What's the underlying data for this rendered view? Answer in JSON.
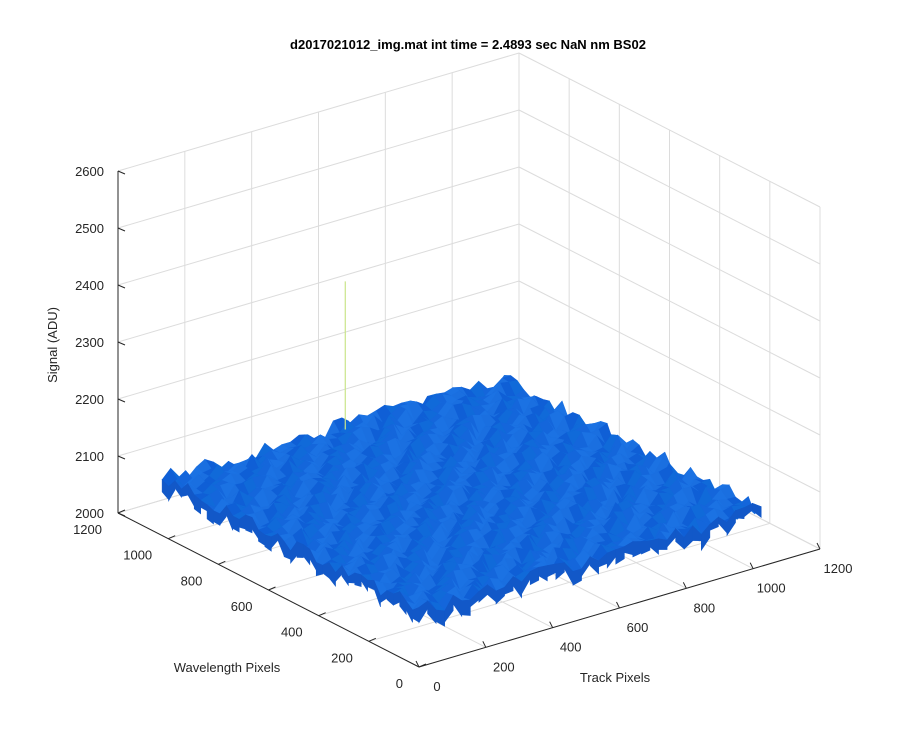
{
  "chart_data": {
    "type": "surface",
    "title": "d2017021012_img.mat int time = 2.4893 sec  NaN nm BS02",
    "xlabel": "Track Pixels",
    "ylabel": "Wavelength Pixels",
    "zlabel": "Signal (ADU)",
    "xlim": [
      0,
      1200
    ],
    "ylim": [
      0,
      1200
    ],
    "zlim": [
      2000,
      2600
    ],
    "xticks": [
      "0",
      "200",
      "400",
      "600",
      "800",
      "1000",
      "1200"
    ],
    "yticks": [
      "0",
      "200",
      "400",
      "600",
      "800",
      "1000",
      "1200"
    ],
    "zticks": [
      "2000",
      "2100",
      "2200",
      "2300",
      "2400",
      "2500",
      "2600"
    ],
    "surface": {
      "x_range": [
        0,
        1024
      ],
      "y_range": [
        0,
        1024
      ],
      "z_mean": 2100,
      "z_noise": 15,
      "spike": {
        "x": 530,
        "y": 1000,
        "z": 2360
      },
      "colormap": "parula",
      "dominant_color": "#1166dd"
    },
    "grid": true,
    "box": false,
    "view": "3d-default"
  }
}
